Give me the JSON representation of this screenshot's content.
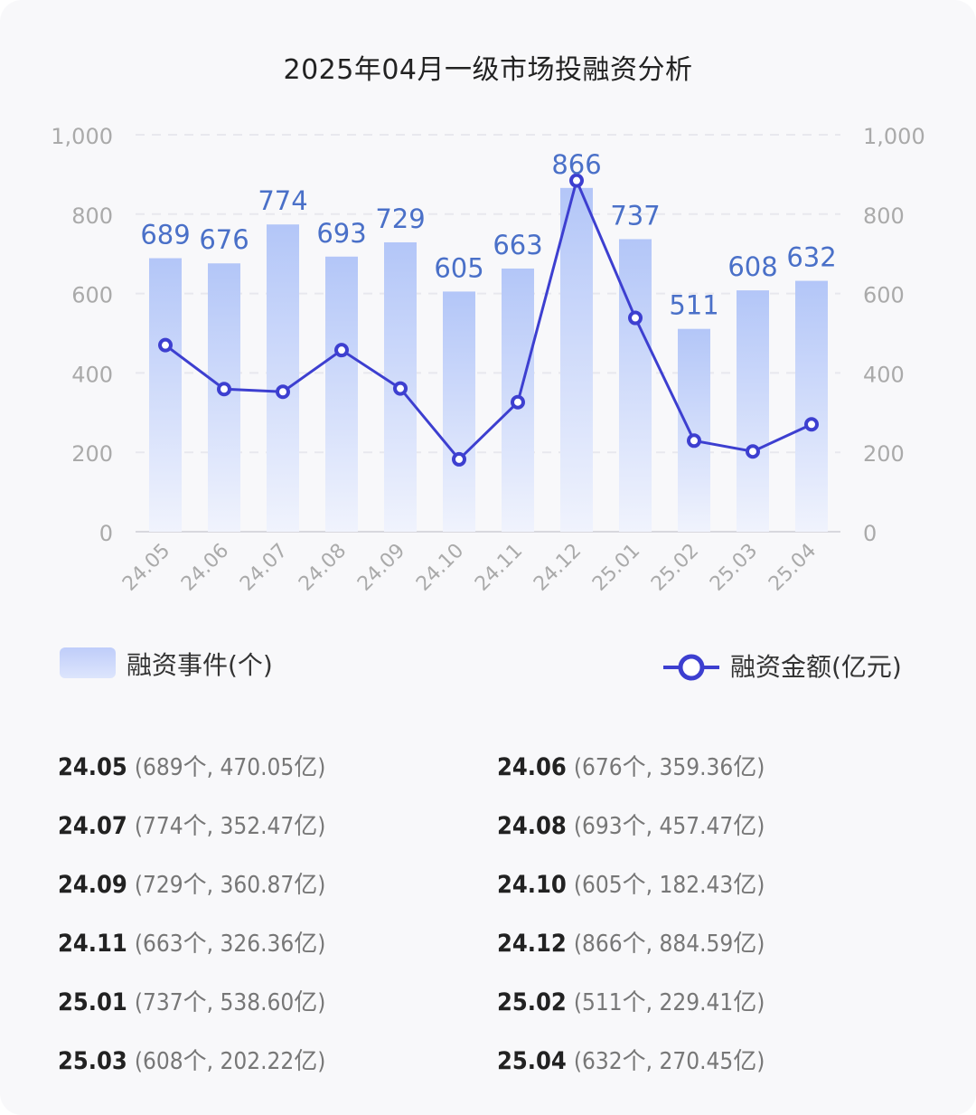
{
  "title": "2025年04月一级市场投融资分析",
  "legend": {
    "bar_label": "融资事件(个)",
    "line_label": "融资金额(亿元)"
  },
  "colors": {
    "bar_top": "#b3c6f8",
    "bar_bottom": "#f0f3fd",
    "bar_label": "#4a70c8",
    "line": "#3d3fd0",
    "axis_text": "#aaaaaa",
    "grid": "#e8e8ee"
  },
  "chart_data": {
    "type": "bar",
    "title": "2025年04月一级市场投融资分析",
    "categories": [
      "24.05",
      "24.06",
      "24.07",
      "24.08",
      "24.09",
      "24.10",
      "24.11",
      "24.12",
      "25.01",
      "25.02",
      "25.03",
      "25.04"
    ],
    "series": [
      {
        "name": "融资事件(个)",
        "type": "bar",
        "axis": "left",
        "values": [
          689,
          676,
          774,
          693,
          729,
          605,
          663,
          866,
          737,
          511,
          608,
          632
        ]
      },
      {
        "name": "融资金额(亿元)",
        "type": "line",
        "axis": "right",
        "values": [
          470.05,
          359.36,
          352.47,
          457.47,
          360.87,
          182.43,
          326.36,
          884.59,
          538.6,
          229.41,
          202.22,
          270.45
        ]
      }
    ],
    "y_ticks": [
      "0",
      "200",
      "400",
      "600",
      "800",
      "1,000"
    ],
    "ylim": [
      0,
      1000
    ],
    "y2lim": [
      0,
      1000
    ],
    "grid": true,
    "legend_position": "bottom"
  },
  "summary": [
    {
      "period": "24.05",
      "detail": "(689个, 470.05亿)"
    },
    {
      "period": "24.06",
      "detail": "(676个, 359.36亿)"
    },
    {
      "period": "24.07",
      "detail": "(774个, 352.47亿)"
    },
    {
      "period": "24.08",
      "detail": "(693个, 457.47亿)"
    },
    {
      "period": "24.09",
      "detail": "(729个, 360.87亿)"
    },
    {
      "period": "24.10",
      "detail": "(605个, 182.43亿)"
    },
    {
      "period": "24.11",
      "detail": "(663个, 326.36亿)"
    },
    {
      "period": "24.12",
      "detail": "(866个, 884.59亿)"
    },
    {
      "period": "25.01",
      "detail": "(737个, 538.60亿)"
    },
    {
      "period": "25.02",
      "detail": "(511个, 229.41亿)"
    },
    {
      "period": "25.03",
      "detail": "(608个, 202.22亿)"
    },
    {
      "period": "25.04",
      "detail": "(632个, 270.45亿)"
    }
  ]
}
